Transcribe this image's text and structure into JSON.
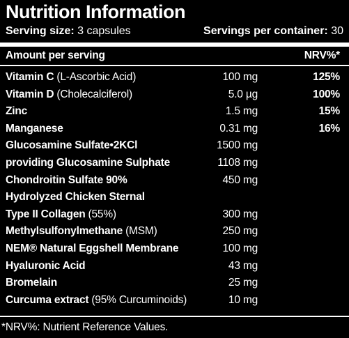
{
  "header": {
    "title": "Nutrition Information",
    "serving_size_label": "Serving size:",
    "serving_size": "3 capsules",
    "servings_label": "Servings per container:",
    "servings": "30"
  },
  "table": {
    "amount_header": "Amount per serving",
    "nrv_header": "NRV%*",
    "rows": [
      {
        "name": "Vitamin C",
        "detail": "(L-Ascorbic Acid)",
        "amount": "100 mg",
        "nrv": "125%"
      },
      {
        "name": "Vitamin D",
        "detail": "(Cholecalciferol)",
        "amount": "5.0 µg",
        "nrv": "100%"
      },
      {
        "name": "Zinc",
        "amount": "1.5 mg",
        "nrv": "15%"
      },
      {
        "name": "Manganese",
        "amount": "0.31 mg",
        "nrv": "16%"
      },
      {
        "name": "Glucosamine Sulfate•2KCl",
        "amount": "1500 mg"
      },
      {
        "name": "providing Glucosamine Sulphate",
        "amount": "1108 mg"
      },
      {
        "name": "Chondroitin Sulfate 90%",
        "amount": "450 mg"
      },
      {
        "name": "Hydrolyzed Chicken Sternal"
      },
      {
        "name": "Type II Collagen",
        "detail": "(55%)",
        "amount": "300 mg"
      },
      {
        "name": "Methylsulfonylmethane",
        "detail": "(MSM)",
        "amount": "250 mg"
      },
      {
        "name": "NEM® Natural Eggshell Membrane",
        "amount": "100 mg"
      },
      {
        "name": "Hyaluronic Acid",
        "amount": "43 mg"
      },
      {
        "name": "Bromelain",
        "amount": "25 mg"
      },
      {
        "name": "Curcuma extract",
        "detail": "(95% Curcuminoids)",
        "amount": "10 mg"
      }
    ]
  },
  "footnote": "*NRV%: Nutrient Reference Values."
}
